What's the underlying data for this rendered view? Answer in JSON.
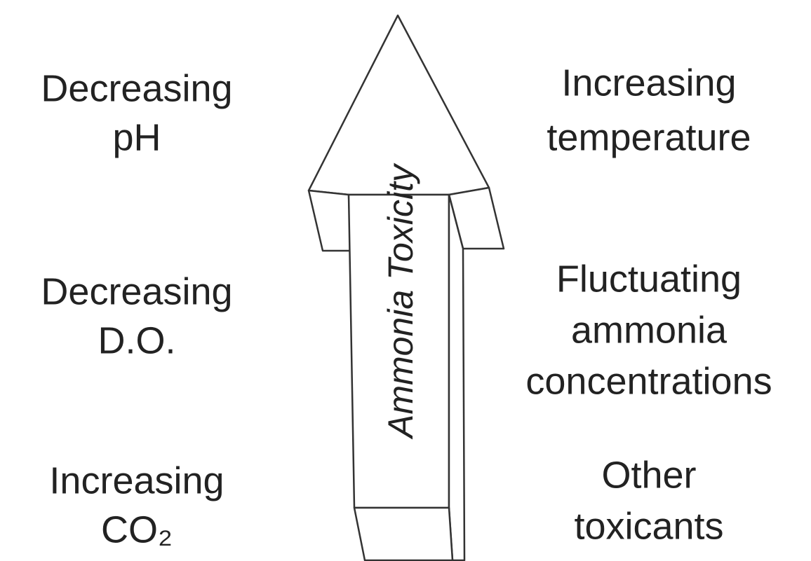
{
  "arrow_label": "Ammonia Toxicity",
  "left_factors": [
    {
      "lines": [
        "Decreasing",
        "pH"
      ]
    },
    {
      "lines": [
        "Decreasing",
        "D.O."
      ]
    },
    {
      "lines": [
        "Increasing",
        "CO₂"
      ]
    }
  ],
  "right_factors": [
    {
      "lines": [
        "Increasing",
        "temperature"
      ]
    },
    {
      "lines": [
        "Fluctuating",
        "ammonia",
        "concentrations"
      ]
    },
    {
      "lines": [
        "Other",
        "toxicants"
      ]
    }
  ]
}
